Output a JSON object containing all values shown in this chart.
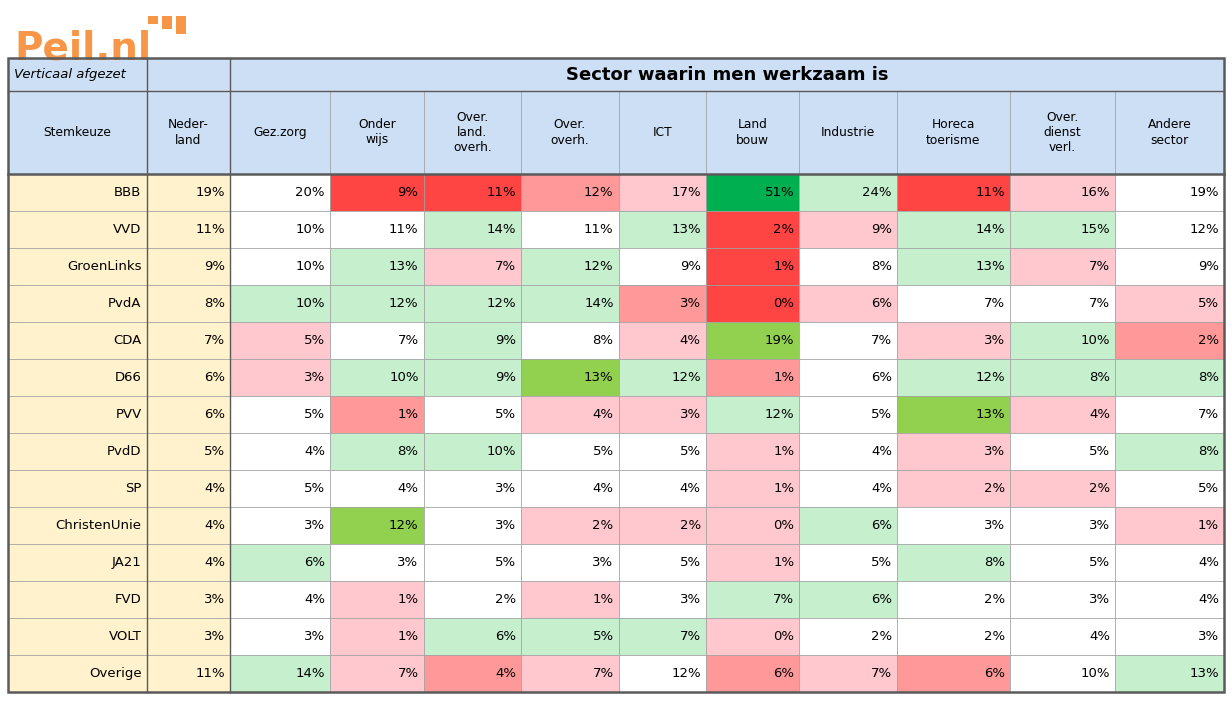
{
  "col_headers": [
    "Neder-\nland",
    "Gez.zorg",
    "Onder\nwijs",
    "Over.\nland.\noverh.",
    "Over.\noverh.",
    "ICT",
    "Land\nbouw",
    "Industrie",
    "Horeca\ntoerisme",
    "Over.\ndienst\nverl.",
    "Andere\nsector"
  ],
  "row_labels": [
    "BBB",
    "VVD",
    "GroenLinks",
    "PvdA",
    "CDA",
    "D66",
    "PVV",
    "PvdD",
    "SP",
    "ChristenUnie",
    "JA21",
    "FVD",
    "VOLT",
    "Overige"
  ],
  "data": [
    [
      19,
      20,
      9,
      11,
      12,
      17,
      51,
      24,
      11,
      16,
      19
    ],
    [
      11,
      10,
      11,
      14,
      11,
      13,
      2,
      9,
      14,
      15,
      12
    ],
    [
      9,
      10,
      13,
      7,
      12,
      9,
      1,
      8,
      13,
      7,
      9
    ],
    [
      8,
      10,
      12,
      12,
      14,
      3,
      0,
      6,
      7,
      7,
      5
    ],
    [
      7,
      5,
      7,
      9,
      8,
      4,
      19,
      7,
      3,
      10,
      2
    ],
    [
      6,
      3,
      10,
      9,
      13,
      12,
      1,
      6,
      12,
      8,
      8
    ],
    [
      6,
      5,
      1,
      5,
      4,
      3,
      12,
      5,
      13,
      4,
      7
    ],
    [
      5,
      4,
      8,
      10,
      5,
      5,
      1,
      4,
      3,
      5,
      8
    ],
    [
      4,
      5,
      4,
      3,
      4,
      4,
      1,
      4,
      2,
      2,
      5
    ],
    [
      4,
      3,
      12,
      3,
      2,
      2,
      0,
      6,
      3,
      3,
      1
    ],
    [
      4,
      6,
      3,
      5,
      3,
      5,
      1,
      5,
      8,
      5,
      4
    ],
    [
      3,
      4,
      1,
      2,
      1,
      3,
      7,
      6,
      2,
      3,
      4
    ],
    [
      3,
      3,
      1,
      6,
      5,
      7,
      0,
      2,
      2,
      4,
      3
    ],
    [
      11,
      14,
      7,
      4,
      7,
      12,
      6,
      7,
      6,
      10,
      13
    ]
  ],
  "yellow": "#FFF2CC",
  "blue_light": "#CDDFF5",
  "green_strong": "#00B050",
  "green_medium": "#92D050",
  "green_light": "#C6EFCE",
  "red_strong": "#FF4444",
  "red_medium": "#FF9999",
  "red_light": "#FFC7CE",
  "white": "#FFFFFF",
  "logo_orange": "#F79646",
  "table_border": "#7F7F7F",
  "header_border": "#2F5496"
}
